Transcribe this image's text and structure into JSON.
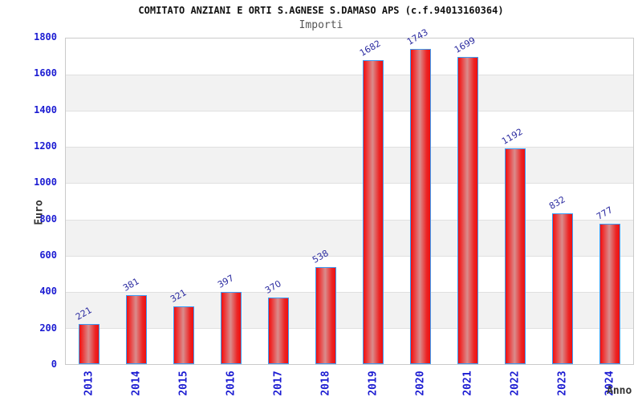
{
  "title": "COMITATO ANZIANI E ORTI S.AGNESE S.DAMASO APS (c.f.94013160364)",
  "subtitle": "Importi",
  "chart_data": {
    "type": "bar",
    "title": "COMITATO ANZIANI E ORTI S.AGNESE S.DAMASO APS (c.f.94013160364)",
    "subtitle": "Importi",
    "categories": [
      "2013",
      "2014",
      "2015",
      "2016",
      "2017",
      "2018",
      "2019",
      "2020",
      "2021",
      "2022",
      "2023",
      "2024"
    ],
    "values": [
      221,
      381,
      321,
      397,
      370,
      538,
      1682,
      1743,
      1699,
      1192,
      832,
      777
    ],
    "xlabel": "Anno",
    "ylabel": "Euro",
    "ylim": [
      0,
      1800
    ],
    "yticks": [
      0,
      200,
      400,
      600,
      800,
      1000,
      1200,
      1400,
      1600,
      1800
    ],
    "grid": "alternating horizontal bands, light gray lines every 200",
    "legend_position": "none",
    "bar_labels_rotation_deg": -30,
    "x_tick_rotation_deg": -90
  },
  "colors": {
    "bar_edge_red": "#ee1010",
    "bar_center_highlight": "#da8c8c",
    "bar_border_blue": "#3b9df7",
    "tick_label_blue": "#1c1cd2",
    "value_label_navy": "#2b2ba0",
    "band_gray": "#f2f2f2",
    "grid_line": "#e0e0e0",
    "plot_border": "#cacaca",
    "title_text": "#111111",
    "subtitle_text": "#555555",
    "axis_title_text": "#333333",
    "background": "#ffffff"
  }
}
